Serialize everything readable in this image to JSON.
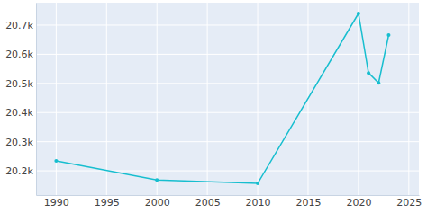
{
  "chart_data": {
    "type": "line",
    "x": [
      1990,
      2000,
      2010,
      2020,
      2021,
      2022,
      2023
    ],
    "values": [
      20234,
      20169,
      20157,
      20740,
      20536,
      20502,
      20666
    ],
    "color": "#17becf",
    "marker": "circle",
    "xlim": [
      1988,
      2026
    ],
    "xticks": [
      1990,
      1995,
      2000,
      2005,
      2010,
      2015,
      2020,
      2025
    ],
    "ylim": [
      20117,
      20777
    ],
    "yticks": [
      {
        "value": 20200,
        "label": "20.2k"
      },
      {
        "value": 20300,
        "label": "20.3k"
      },
      {
        "value": 20400,
        "label": "20.4k"
      },
      {
        "value": 20500,
        "label": "20.5k"
      },
      {
        "value": 20600,
        "label": "20.6k"
      },
      {
        "value": 20700,
        "label": "20.7k"
      }
    ],
    "grid": true
  }
}
